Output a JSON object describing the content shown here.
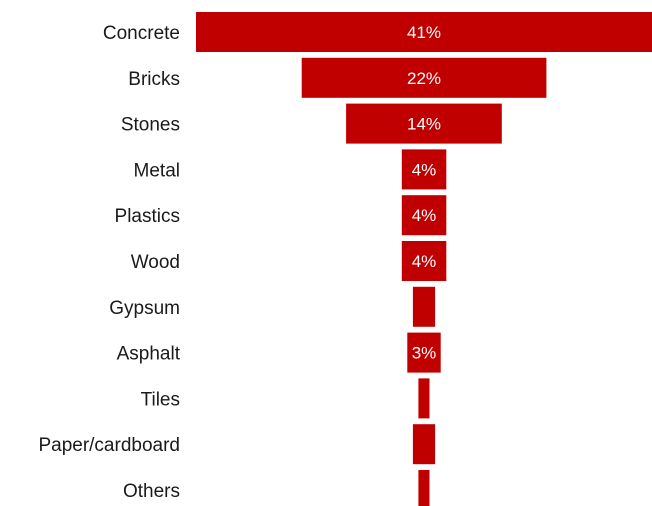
{
  "chart_data": {
    "type": "bar",
    "subtype": "funnel",
    "orientation": "horizontal",
    "categories": [
      "Concrete",
      "Bricks",
      "Stones",
      "Metal",
      "Plastics",
      "Wood",
      "Gypsum",
      "Asphalt",
      "Tiles",
      "Paper/cardboard",
      "Others"
    ],
    "values": [
      41,
      22,
      14,
      4,
      4,
      4,
      2,
      3,
      1,
      2,
      1
    ],
    "value_labels": [
      "41%",
      "22%",
      "14%",
      "4%",
      "4%",
      "4%",
      "",
      "3%",
      "",
      "",
      ""
    ],
    "units": "%",
    "bar_color": "#C00000",
    "label_color": "#FFFFFF",
    "title": "",
    "xlabel": "",
    "ylabel": "",
    "legend": "none",
    "grid": false
  }
}
